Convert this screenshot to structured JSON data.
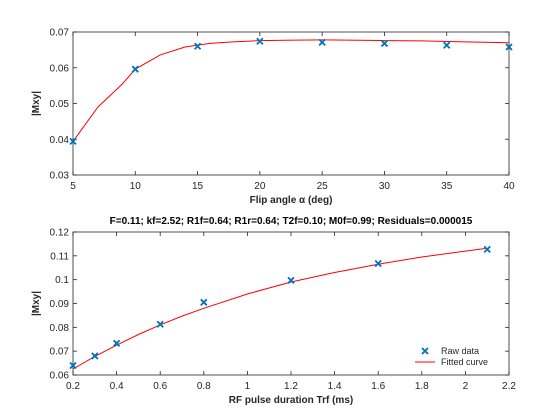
{
  "chart_data": [
    {
      "type": "scatter",
      "title": "",
      "xlabel": "Flip angle α (deg)",
      "ylabel": "|Mxy|",
      "xlim": [
        5,
        40
      ],
      "ylim": [
        0.03,
        0.07
      ],
      "xticks": [
        5,
        10,
        15,
        20,
        25,
        30,
        35,
        40
      ],
      "xtick_labels": [
        "5",
        "10",
        "15",
        "20",
        "25",
        "30",
        "35",
        "40"
      ],
      "yticks": [
        0.03,
        0.04,
        0.05,
        0.06,
        0.07
      ],
      "ytick_labels": [
        "0.03",
        "0.04",
        "0.05",
        "0.06",
        "0.07"
      ],
      "grid": false,
      "series": [
        {
          "kind": "marker",
          "color": "#0072BD",
          "x": [
            5,
            10,
            15,
            20,
            25,
            30,
            35,
            40
          ],
          "y": [
            0.0394,
            0.0596,
            0.066,
            0.0674,
            0.0671,
            0.0668,
            0.0663,
            0.0658
          ]
        },
        {
          "kind": "line",
          "color": "#FF0000",
          "x": [
            5,
            7,
            9,
            10,
            12,
            14,
            16,
            18,
            20,
            22,
            25,
            28,
            30,
            33,
            36,
            40
          ],
          "y": [
            0.0394,
            0.049,
            0.0556,
            0.0596,
            0.0636,
            0.0658,
            0.0668,
            0.0673,
            0.0676,
            0.0677,
            0.0678,
            0.0677,
            0.0676,
            0.0675,
            0.0673,
            0.067
          ]
        }
      ]
    },
    {
      "type": "scatter",
      "title": "F=0.11; kf=2.52; R1f=0.64; R1r=0.64; T2f=0.10; M0f=0.99; Residuals=0.000015",
      "xlabel": "RF pulse duration Trf (ms)",
      "ylabel": "|Mxy|",
      "xlim": [
        0.2,
        2.2
      ],
      "ylim": [
        0.06,
        0.12
      ],
      "xticks": [
        0.2,
        0.4,
        0.6,
        0.8,
        1,
        1.2,
        1.4,
        1.6,
        1.8,
        2,
        2.2
      ],
      "xtick_labels": [
        "0.2",
        "0.4",
        "0.6",
        "0.8",
        "1",
        "1.2",
        "1.4",
        "1.6",
        "1.8",
        "2",
        "2.2"
      ],
      "yticks": [
        0.06,
        0.07,
        0.08,
        0.09,
        0.1,
        0.11,
        0.12
      ],
      "ytick_labels": [
        "0.06",
        "0.07",
        "0.08",
        "0.09",
        "0.1",
        "0.11",
        "0.12"
      ],
      "grid": false,
      "legend": {
        "placement": "bottom-right",
        "entries": [
          "Raw data",
          "Fitted curve"
        ]
      },
      "series": [
        {
          "name": "Raw data",
          "kind": "marker",
          "color": "#0072BD",
          "x": [
            0.2,
            0.3,
            0.4,
            0.6,
            0.8,
            1.2,
            1.6,
            2.1
          ],
          "y": [
            0.064,
            0.068,
            0.0733,
            0.0813,
            0.0905,
            0.0997,
            0.1068,
            0.1127
          ]
        },
        {
          "name": "Fitted curve",
          "kind": "line",
          "color": "#FF0000",
          "x": [
            0.2,
            0.3,
            0.4,
            0.5,
            0.6,
            0.7,
            0.8,
            1.0,
            1.2,
            1.4,
            1.6,
            1.8,
            2.0,
            2.1
          ],
          "y": [
            0.0625,
            0.0678,
            0.0725,
            0.077,
            0.081,
            0.0847,
            0.088,
            0.094,
            0.099,
            0.103,
            0.1065,
            0.1095,
            0.112,
            0.1132
          ]
        }
      ]
    }
  ]
}
